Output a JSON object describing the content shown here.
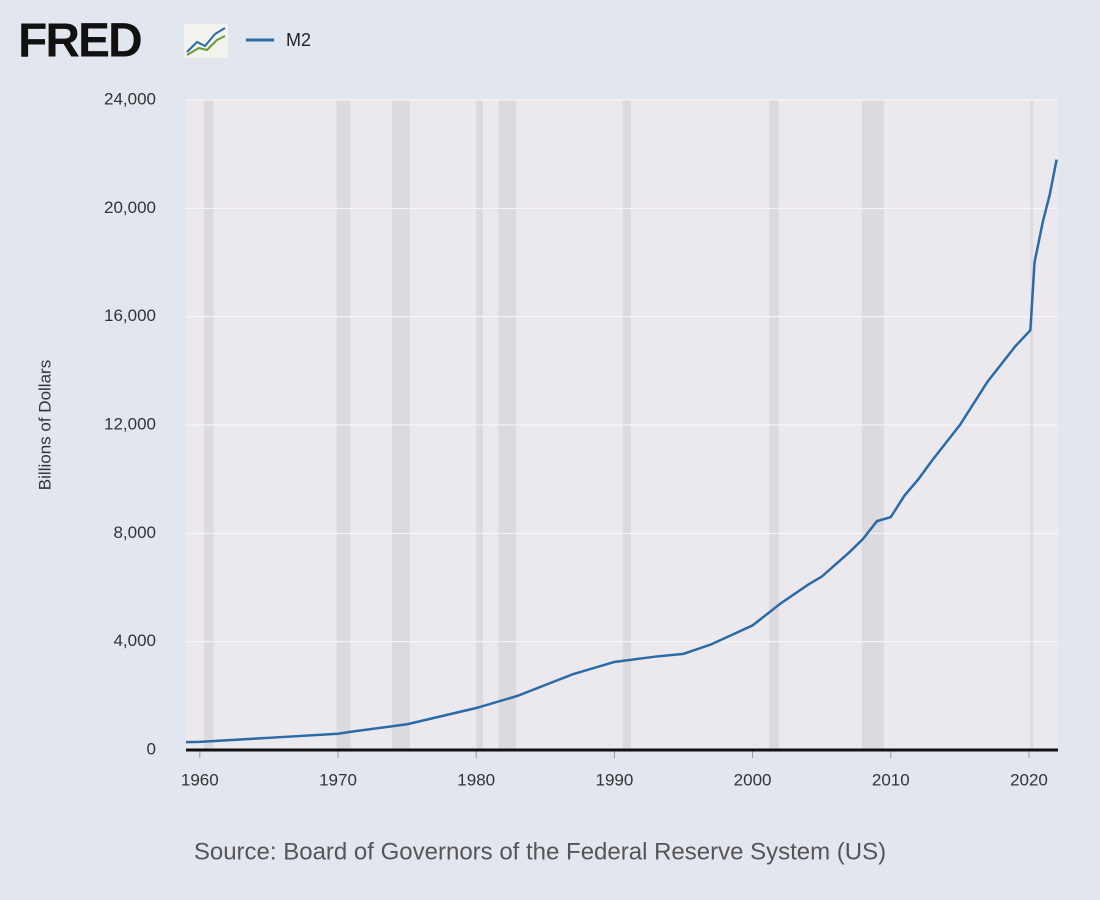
{
  "chart_data": {
    "type": "line",
    "logo": "FRED",
    "y_label": "Billions of Dollars",
    "source": "Source: Board of Governors of the Federal Reserve System (US)",
    "x": [
      1959,
      1960,
      1965,
      1970,
      1971,
      1975,
      1980,
      1983,
      1985,
      1987,
      1990,
      1993,
      1995,
      1997,
      2000,
      2002,
      2004,
      2005,
      2007,
      2008,
      2009,
      2010,
      2011,
      2012,
      2013,
      2015,
      2017,
      2019,
      2020.1,
      2020.4,
      2021,
      2021.5,
      2022
    ],
    "series": [
      {
        "name": "M2",
        "color": "#2a6aa6",
        "values": [
          290,
          300,
          450,
          600,
          680,
          950,
          1550,
          2000,
          2400,
          2800,
          3250,
          3450,
          3550,
          3900,
          4600,
          5400,
          6100,
          6400,
          7300,
          7800,
          8450,
          8600,
          9400,
          10000,
          10700,
          12000,
          13600,
          14900,
          15500,
          18000,
          19500,
          20500,
          21800
        ]
      }
    ],
    "recessions": [
      [
        1960.3,
        1961.0
      ],
      [
        1969.9,
        1970.9
      ],
      [
        1973.9,
        1975.2
      ],
      [
        1980.0,
        1980.5
      ],
      [
        1981.6,
        1982.9
      ],
      [
        1990.6,
        1991.2
      ],
      [
        2001.2,
        2001.9
      ],
      [
        2007.9,
        2009.5
      ],
      [
        2020.1,
        2020.3
      ]
    ],
    "xlim": [
      1959,
      2022.1
    ],
    "ylim": [
      0,
      24000
    ],
    "xticks": [
      1960,
      1970,
      1980,
      1990,
      2000,
      2010,
      2020
    ],
    "yticks": [
      0,
      {
        "value": 4000,
        "label": "4,000"
      },
      {
        "value": 8000,
        "label": "8,000"
      },
      {
        "value": 12000,
        "label": "12,000"
      },
      {
        "value": 16000,
        "label": "16,000"
      },
      {
        "value": 20000,
        "label": "20,000"
      },
      {
        "value": 24000,
        "label": "24,000"
      }
    ],
    "grid": true
  }
}
